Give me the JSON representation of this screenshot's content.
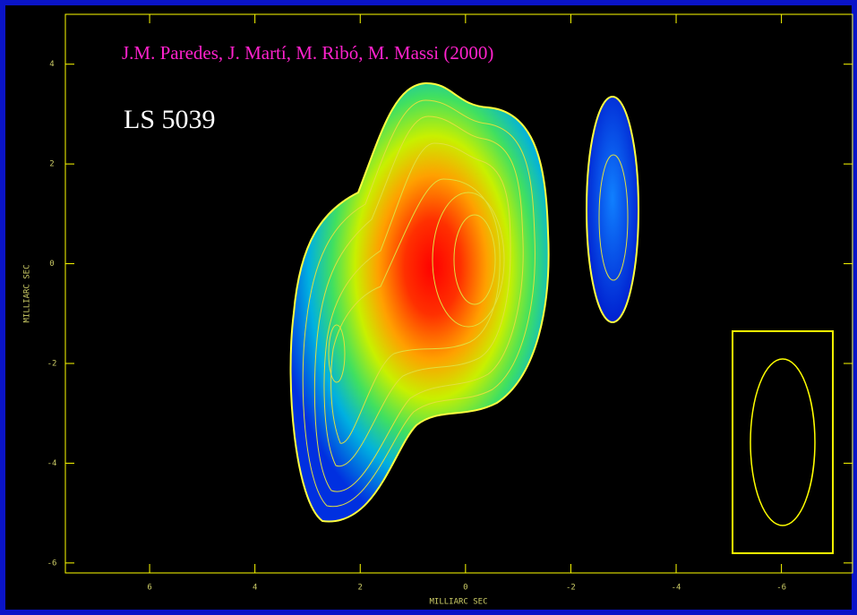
{
  "chart_data": {
    "type": "contour",
    "title": "J.M. Paredes, J. Martí, M. Ribó, M. Massi (2000)",
    "source_label": "LS 5039",
    "xlabel": "MILLIARC SEC",
    "ylabel": "MILLIARC SEC",
    "xlim": [
      7.6,
      -7.35
    ],
    "ylim": [
      -6.2,
      5.0
    ],
    "xticks": [
      6,
      4,
      2,
      0,
      -2,
      -4,
      -6
    ],
    "yticks": [
      4,
      2,
      0,
      -2,
      -4,
      -6
    ],
    "axis_color": "#ffff00"
  }
}
